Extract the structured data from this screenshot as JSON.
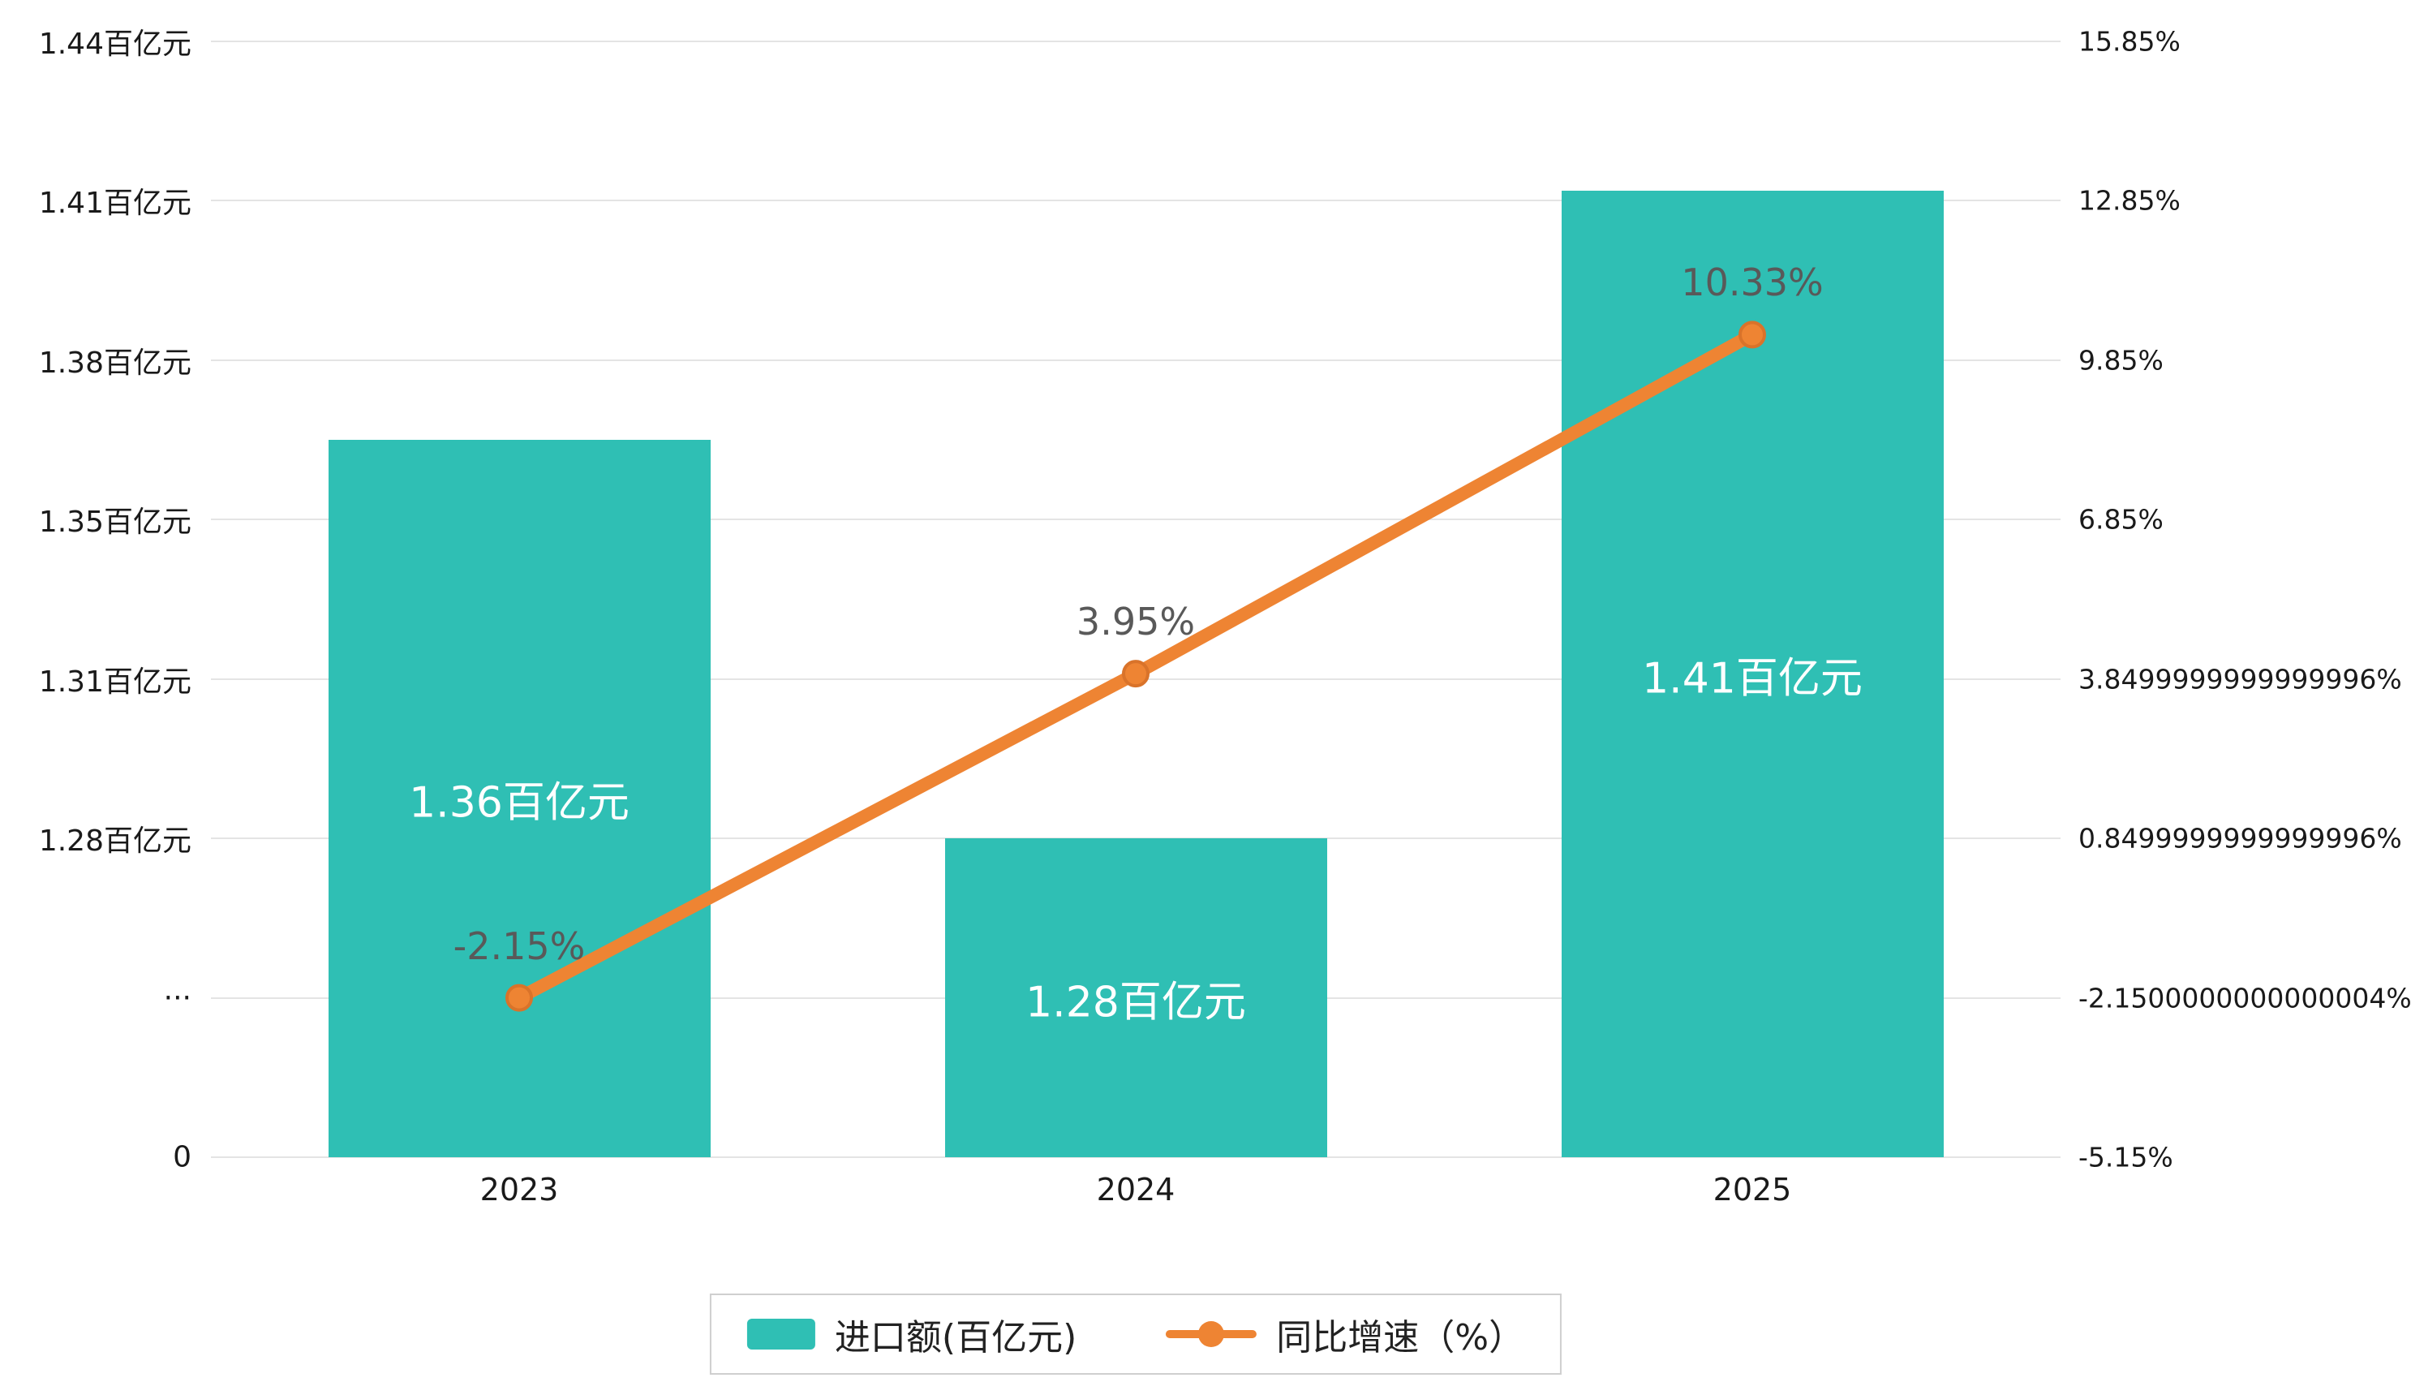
{
  "chart_data": {
    "type": "bar+line",
    "categories": [
      "2023",
      "2024",
      "2025"
    ],
    "series": [
      {
        "name": "进口额(百亿元)",
        "type": "bar",
        "axis": "left",
        "values": [
          1.36,
          1.28,
          1.41
        ],
        "data_labels": [
          "1.36百亿元",
          "1.28百亿元",
          "1.41百亿元"
        ],
        "color": "#2fbfb4",
        "label_color": "#ffffff"
      },
      {
        "name": "同比增速（%）",
        "type": "line",
        "axis": "right",
        "values": [
          -2.15,
          3.95,
          10.33
        ],
        "data_labels": [
          "-2.15%",
          "3.95%",
          "10.33%"
        ],
        "color": "#ee8433",
        "marker_stroke": "#d9732a",
        "label_color": "#595959"
      }
    ],
    "left_axis": {
      "tick_labels": [
        "1.44百亿元",
        "1.41百亿元",
        "1.38百亿元",
        "1.35百亿元",
        "1.31百亿元",
        "1.28百亿元",
        "···",
        "0"
      ],
      "top_value": 1.44,
      "break_value": 1.28,
      "break_tick_index": 5,
      "broken_axis": true
    },
    "right_axis": {
      "tick_labels": [
        "15.85%",
        "12.85%",
        "9.85%",
        "6.85%",
        "3.8499999999999996%",
        "0.8499999999999996%",
        "-2.1500000000000004%",
        "-5.15%"
      ],
      "max": 15.85,
      "min": -5.15
    },
    "grid": true,
    "grid_color": "#e4e4e4",
    "axis_text_color": "#1a1a1a",
    "background": "#ffffff",
    "legend_position": "bottom",
    "title": ""
  }
}
